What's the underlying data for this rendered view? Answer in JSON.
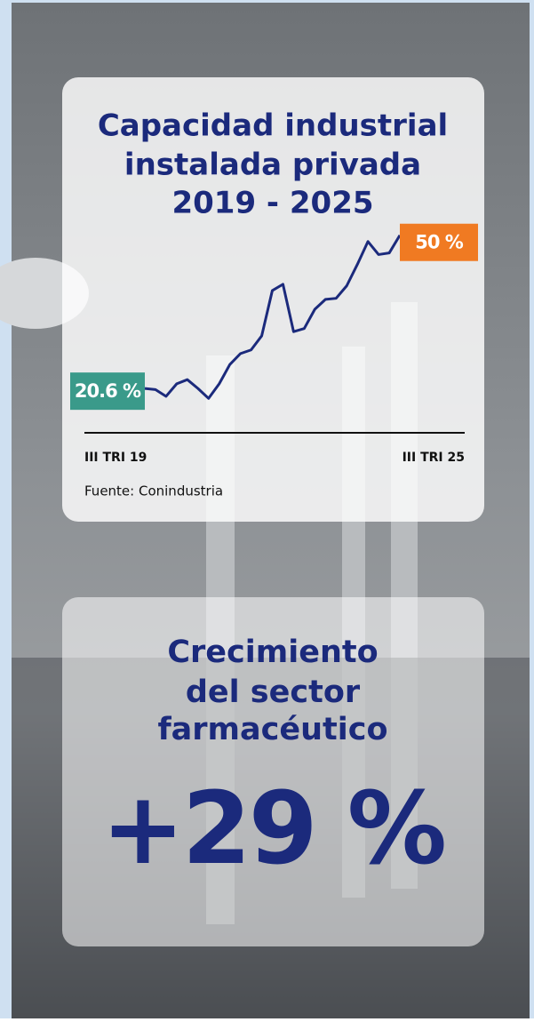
{
  "chart_data": {
    "type": "line",
    "title": [
      "Capacidad industrial",
      "instalada privada",
      "2019 - 2025"
    ],
    "categories": [
      "III TRI 19",
      null,
      null,
      null,
      null,
      null,
      null,
      null,
      null,
      null,
      null,
      null,
      null,
      null,
      null,
      null,
      null,
      null,
      null,
      null,
      null,
      null,
      null,
      null,
      "III TRI 25"
    ],
    "values": [
      20.6,
      20.4,
      19.1,
      21.5,
      22.3,
      20.6,
      18.7,
      21.5,
      25.2,
      27.3,
      28.0,
      30.7,
      39.4,
      40.6,
      31.5,
      32.1,
      35.8,
      37.7,
      37.9,
      40.3,
      44.4,
      48.8,
      46.3,
      46.6,
      50
    ],
    "value_labels": [
      "20.6 %",
      null,
      null,
      null,
      null,
      null,
      null,
      null,
      null,
      null,
      null,
      null,
      null,
      null,
      null,
      null,
      null,
      null,
      null,
      null,
      null,
      null,
      null,
      null,
      "50 %"
    ],
    "color": "#1b2a7c",
    "label_colors": [
      "#3a9a8a",
      "#f07a22"
    ],
    "ylim": [
      15,
      52
    ],
    "source": "Fuente: Conindustria"
  },
  "highlight": {
    "title": [
      "Crecimiento",
      "del sector",
      "farmacéutico"
    ],
    "text": "+29 %"
  }
}
